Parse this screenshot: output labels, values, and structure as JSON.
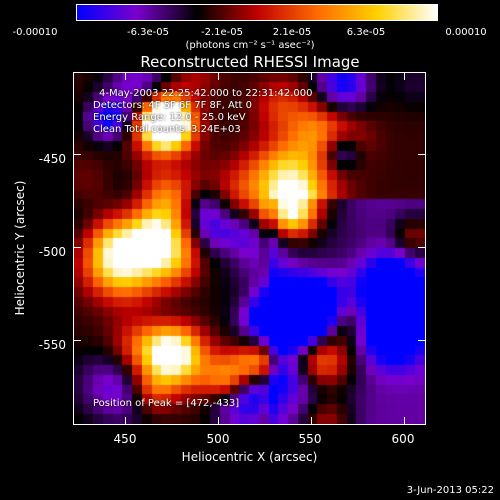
{
  "colorbar": {
    "tick_labels": [
      "-0.00010",
      "-6.3e-05",
      "-2.1e-05",
      "2.1e-05",
      "6.3e-05",
      "0.00010"
    ],
    "units_text": "(photons cm⁻² s⁻¹ asec⁻²)",
    "colors": [
      "#0000ff",
      "#7a00cc",
      "#000000",
      "#c00000",
      "#ff6a00",
      "#ffd000",
      "#ffffff"
    ]
  },
  "chart_data": {
    "type": "heatmap",
    "title": "Reconstructed RHESSI Image",
    "xlabel": "Heliocentric X (arcsec)",
    "ylabel": "Heliocentric Y (arcsec)",
    "xlim": [
      422,
      612
    ],
    "ylim": [
      -596,
      -406
    ],
    "xticks": [
      450,
      500,
      550,
      600
    ],
    "yticks": [
      -450,
      -500,
      -550
    ],
    "vlim": [
      -0.0001,
      0.0001
    ],
    "peak": [
      472,
      -433
    ],
    "annotations": [
      "4-May-2003 22:25:42.000 to 22:31:42.000",
      "Detectors: 4F 5F 6F 7F 8F, Att 0",
      "Energy Range: 12.0 - 25.0 keV",
      "Clean    Total counts: 3.24E+03"
    ],
    "peak_label": "Position of Peak = [472,-433]"
  },
  "footer": "3-Jun-2013 05:22"
}
